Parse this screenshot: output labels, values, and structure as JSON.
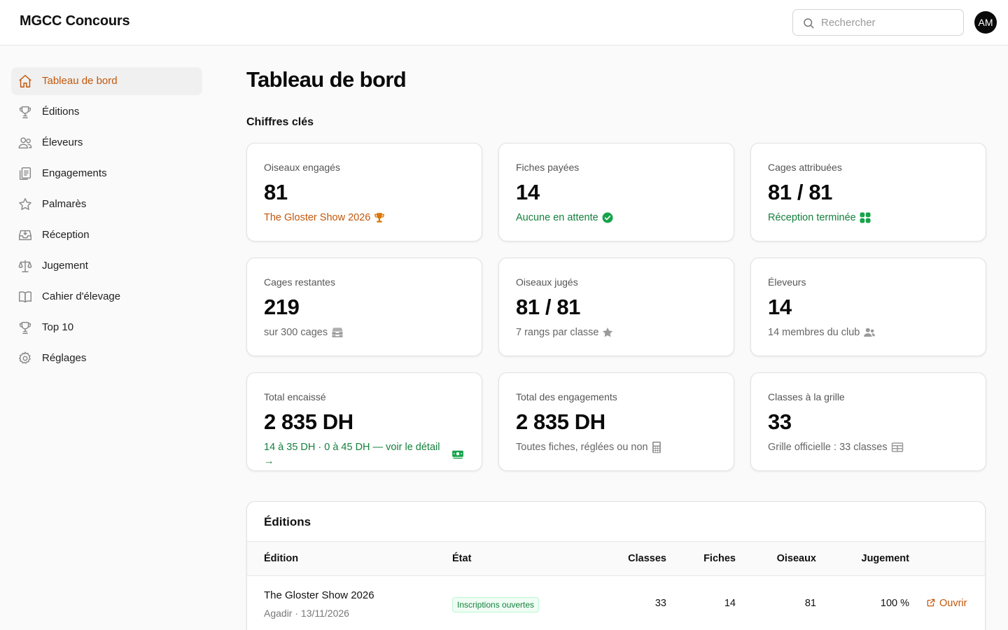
{
  "app": {
    "brand": "MGCC Concours"
  },
  "header": {
    "search_placeholder": "Rechercher",
    "avatar_initials": "AM"
  },
  "sidebar": {
    "items": [
      {
        "label": "Tableau de bord",
        "icon": "home-icon",
        "active": true
      },
      {
        "label": "Éditions",
        "icon": "trophy-icon"
      },
      {
        "label": "Éleveurs",
        "icon": "users-icon"
      },
      {
        "label": "Engagements",
        "icon": "clipboard-icon"
      },
      {
        "label": "Palmarès",
        "icon": "star-icon"
      },
      {
        "label": "Réception",
        "icon": "inbox-icon"
      },
      {
        "label": "Jugement",
        "icon": "scale-icon"
      },
      {
        "label": "Cahier d'élevage",
        "icon": "book-icon"
      },
      {
        "label": "Top 10",
        "icon": "trophy-icon"
      },
      {
        "label": "Réglages",
        "icon": "gear-icon"
      }
    ]
  },
  "main": {
    "title": "Tableau de bord",
    "section_title": "Chiffres clés",
    "cards": [
      {
        "label": "Oiseaux engagés",
        "value": "81",
        "sub": "The Gloster Show 2026",
        "sub_color": "#c2570c",
        "icon": "trophy-icon"
      },
      {
        "label": "Fiches payées",
        "value": "14",
        "sub": "Aucune en attente",
        "sub_color": "#15803d",
        "icon": "check-circle-icon"
      },
      {
        "label": "Cages attribuées",
        "value": "81 / 81",
        "sub": "Réception terminée",
        "sub_color": "#15803d",
        "icon": "grid-icon"
      },
      {
        "label": "Cages restantes",
        "value": "219",
        "sub": "sur 300 cages",
        "icon": "inbox-stack-icon"
      },
      {
        "label": "Oiseaux jugés",
        "value": "81 / 81",
        "sub": "7 rangs par classe",
        "icon": "star-icon"
      },
      {
        "label": "Éleveurs",
        "value": "14",
        "sub": "14 membres du club",
        "icon": "users-icon"
      },
      {
        "label": "Total encaissé",
        "value": "2 835 DH",
        "sub": "14 à 35 DH · 0 à 45 DH — voir le détail →",
        "sub_color": "#15803d",
        "icon": "banknote-icon"
      },
      {
        "label": "Total des engagements",
        "value": "2 835 DH",
        "sub": "Toutes fiches, réglées ou non",
        "icon": "calculator-icon"
      },
      {
        "label": "Classes à la grille",
        "value": "33",
        "sub": "Grille officielle : 33 classes",
        "icon": "table-icon"
      }
    ]
  },
  "editions": {
    "title": "Éditions",
    "columns": [
      "Édition",
      "État",
      "Classes",
      "Fiches",
      "Oiseaux",
      "Jugement"
    ],
    "rows": [
      {
        "name": "The Gloster Show 2026",
        "meta": "Agadir · 13/11/2026",
        "status": "Inscriptions ouvertes",
        "classes": "33",
        "fiches": "14",
        "oiseaux": "81",
        "jugement": "100 %",
        "action": "Ouvrir"
      }
    ]
  },
  "colors": {
    "accent": "#c2570c",
    "success": "#15803d",
    "icon_gray": "#8a8a8a"
  }
}
